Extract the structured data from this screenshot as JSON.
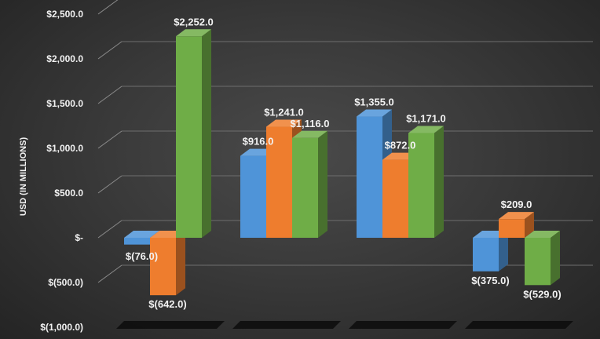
{
  "chart_data": {
    "type": "bar",
    "style": "3d-clustered-column",
    "ylabel": "USD (IN MILLIONS)",
    "ylim": [
      -1000,
      2500
    ],
    "ytick_values": [
      2500,
      2000,
      1500,
      1000,
      500,
      0,
      -500,
      -1000
    ],
    "ytick_labels": [
      "$2,500.0",
      "$2,000.0",
      "$1,500.0",
      "$1,000.0",
      "$500.0",
      "$-",
      "$(500.0)",
      "$(1,000.0)"
    ],
    "categories": [
      "",
      "",
      "",
      ""
    ],
    "series": [
      {
        "color": "#4f94d8",
        "values": [
          -76,
          916,
          1355,
          -375
        ],
        "labels": [
          "$(76.0)",
          "$916.0",
          "$1,355.0",
          "$(375.0)"
        ]
      },
      {
        "color": "#ee7d2e",
        "values": [
          -642,
          1241,
          872,
          209
        ],
        "labels": [
          "$(642.0)",
          "$1,241.0",
          "$872.0",
          "$209.0"
        ]
      },
      {
        "color": "#6fad47",
        "values": [
          2252,
          1116,
          1171,
          -529
        ],
        "labels": [
          "$2,252.0",
          "$1,116.0",
          "$1,171.0",
          "$(529.0)"
        ]
      }
    ],
    "grid": true,
    "legend": "none"
  }
}
